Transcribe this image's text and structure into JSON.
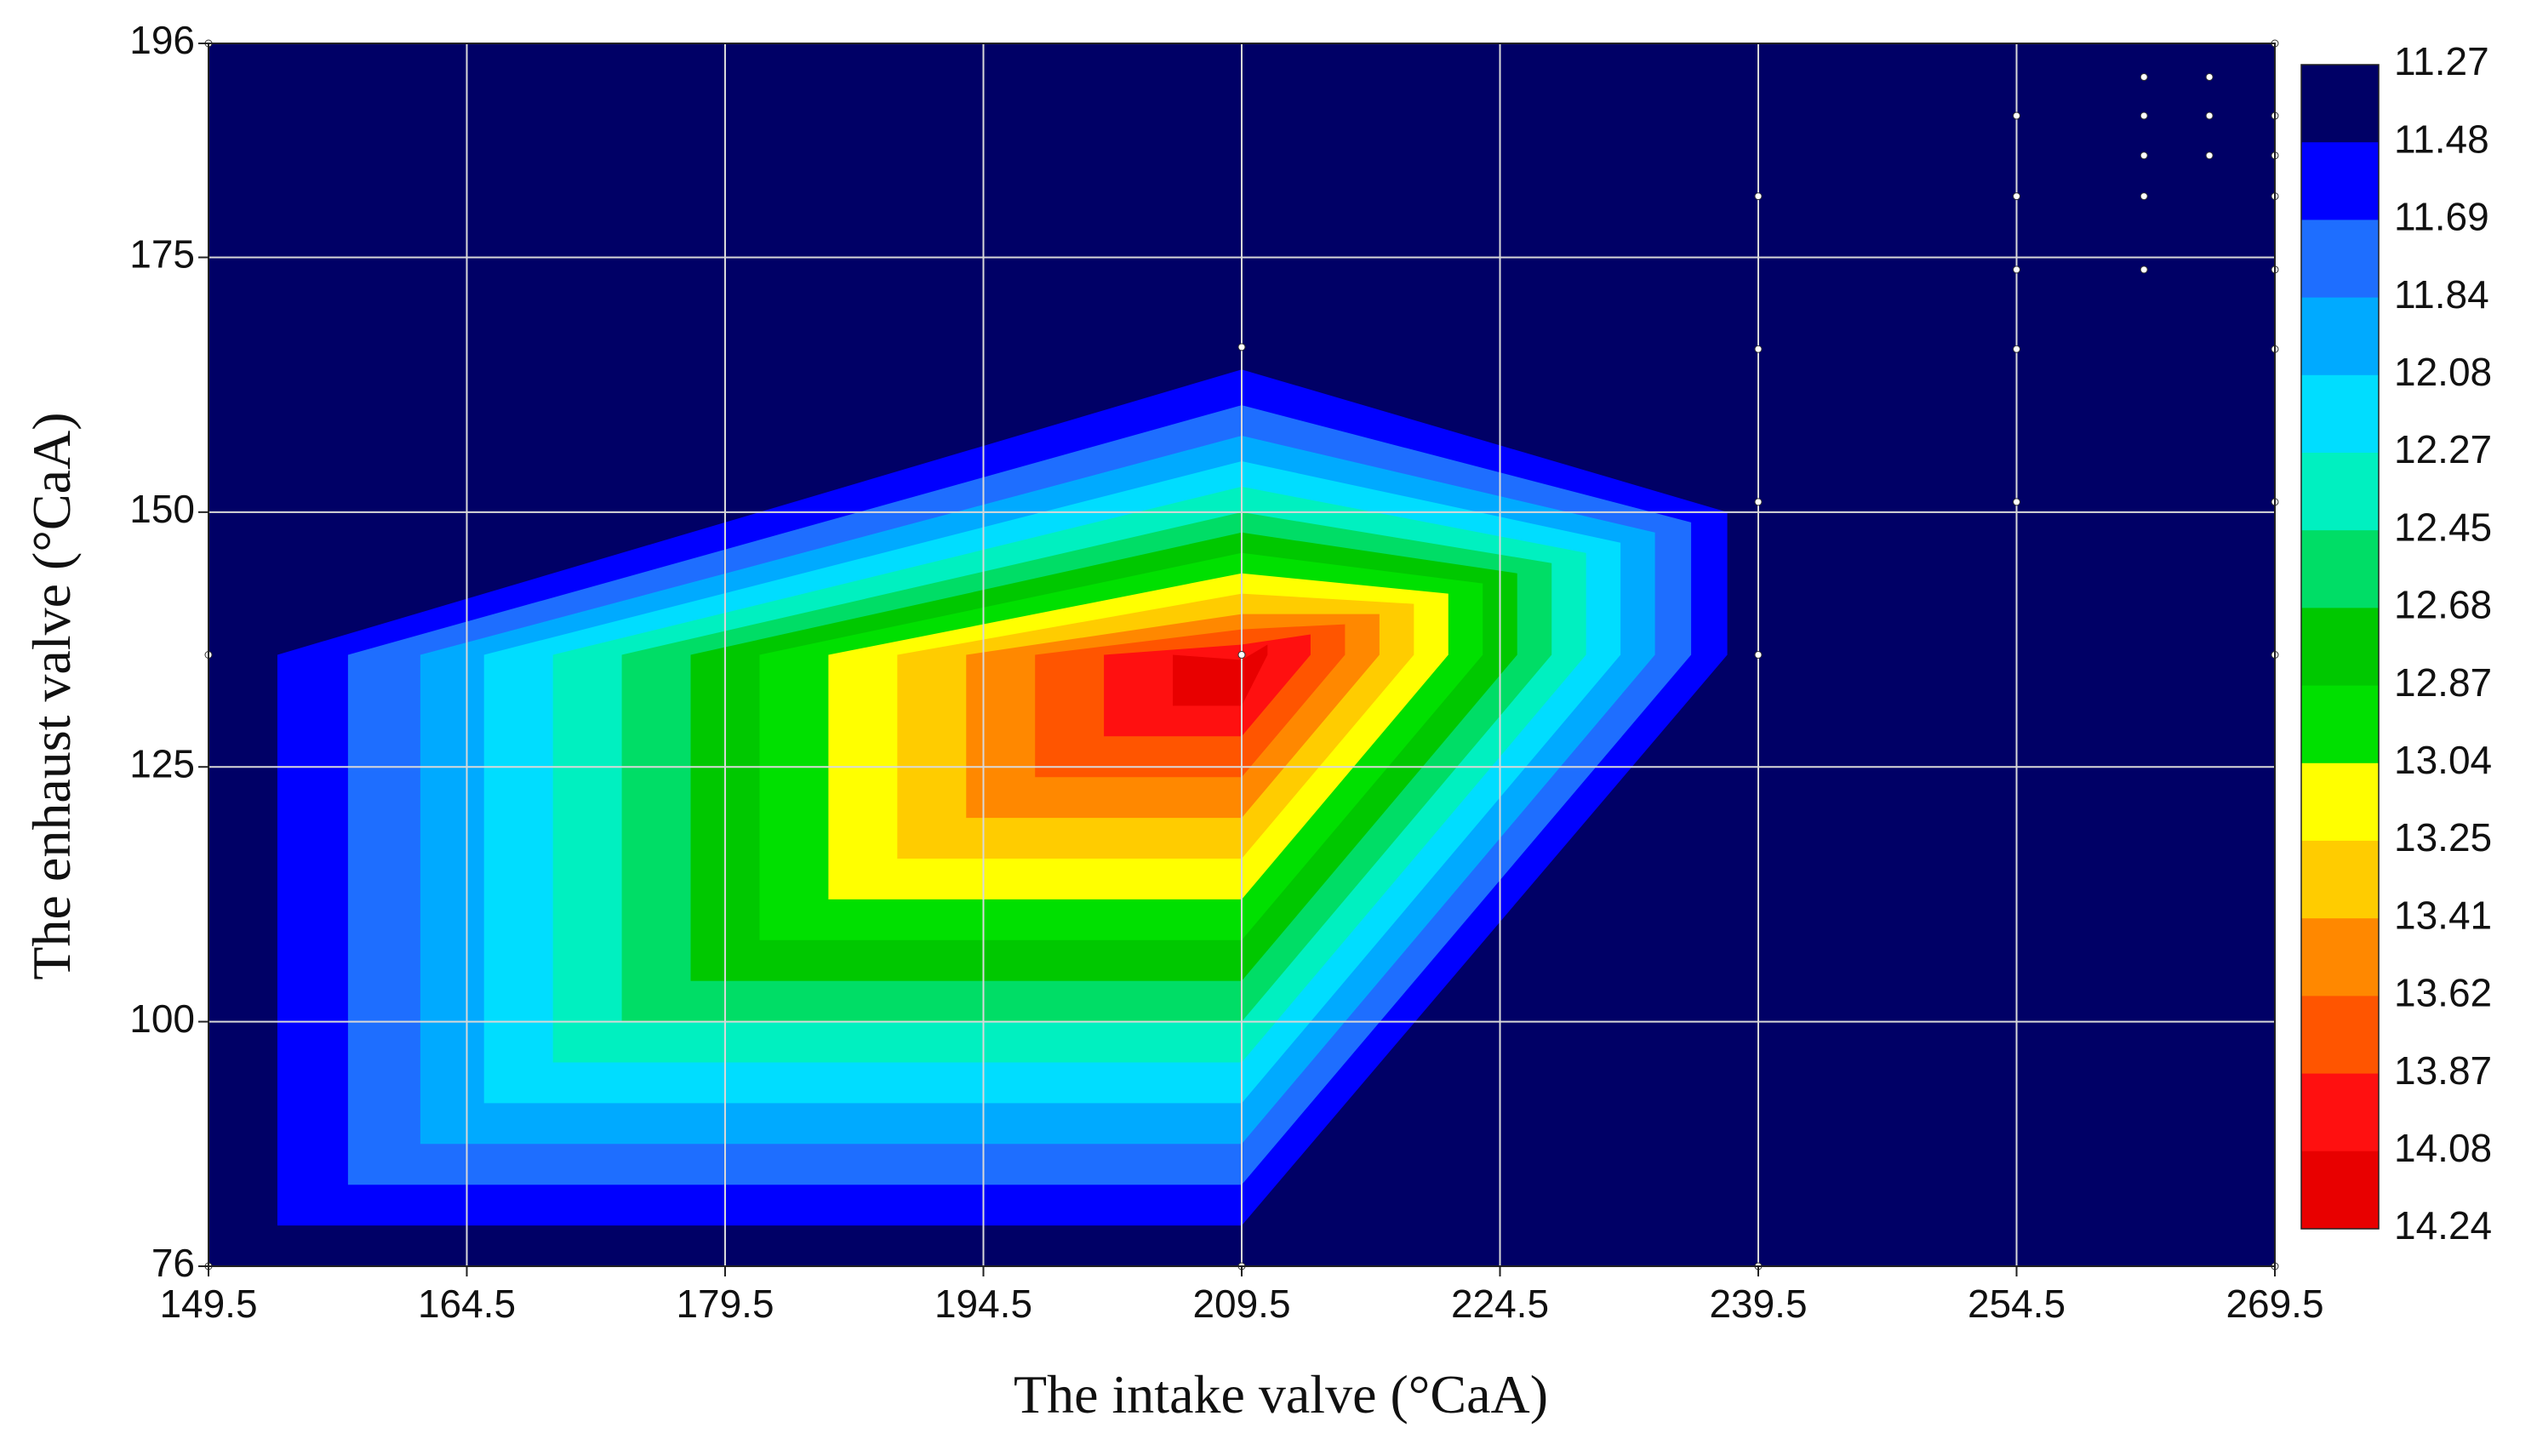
{
  "chart_data": {
    "type": "contour",
    "x_label": "The intake valve (°CaA)",
    "y_label": "The enhaust valve (°CaA)",
    "xlim": [
      149.5,
      269.5
    ],
    "xticks": [
      149.5,
      164.5,
      179.5,
      194.5,
      209.5,
      224.5,
      239.5,
      254.5,
      269.5
    ],
    "ylim": [
      76,
      196
    ],
    "yticks": [
      76,
      100,
      125,
      150,
      175,
      196
    ],
    "grid": true,
    "levels": [
      11.27,
      11.48,
      11.69,
      11.84,
      12.08,
      12.27,
      12.45,
      12.68,
      12.87,
      13.04,
      13.25,
      13.41,
      13.62,
      13.87,
      14.08,
      14.24
    ],
    "colors": [
      "#000066",
      "#0000ff",
      "#1e6eff",
      "#00aaff",
      "#00ddff",
      "#00f0c0",
      "#00dd66",
      "#00c800",
      "#00e000",
      "#ffff00",
      "#ffcc00",
      "#ff8800",
      "#ff5500",
      "#ff1010",
      "#e80000"
    ],
    "contours": [
      {
        "x": [
          153.5,
          209.5,
          237.7,
          237.7,
          209.5,
          153.5
        ],
        "y": [
          136,
          164,
          150,
          136,
          80,
          80
        ]
      },
      {
        "x": [
          157.6,
          209.5,
          235.6,
          235.6,
          209.5,
          157.6
        ],
        "y": [
          136,
          160.5,
          149,
          136,
          84,
          84
        ]
      },
      {
        "x": [
          161.8,
          209.5,
          233.5,
          233.5,
          209.5,
          161.8
        ],
        "y": [
          136,
          157.5,
          148,
          136,
          88,
          88
        ]
      },
      {
        "x": [
          165.5,
          209.5,
          231.5,
          231.5,
          209.5,
          165.5
        ],
        "y": [
          136,
          155,
          147,
          136,
          92,
          92
        ]
      },
      {
        "x": [
          169.5,
          209.5,
          229.5,
          229.5,
          209.5,
          169.5
        ],
        "y": [
          136,
          152.5,
          146,
          136,
          96,
          96
        ]
      },
      {
        "x": [
          173.5,
          209.5,
          227.5,
          227.5,
          209.5,
          173.5
        ],
        "y": [
          136,
          150,
          145,
          136,
          100,
          100
        ]
      },
      {
        "x": [
          177.5,
          209.5,
          225.5,
          225.5,
          209.5,
          177.5
        ],
        "y": [
          136,
          148,
          144,
          136,
          104,
          104
        ]
      },
      {
        "x": [
          181.5,
          209.5,
          223.5,
          223.5,
          209.5,
          181.5
        ],
        "y": [
          136,
          146,
          143,
          136,
          108,
          108
        ]
      },
      {
        "x": [
          185.5,
          209.5,
          221.5,
          221.5,
          209.5,
          185.5
        ],
        "y": [
          136,
          144,
          142,
          136,
          112,
          112
        ]
      },
      {
        "x": [
          189.5,
          209.5,
          219.5,
          219.5,
          209.5,
          189.5
        ],
        "y": [
          136,
          142,
          141,
          136,
          116,
          116
        ]
      },
      {
        "x": [
          193.5,
          209.5,
          217.5,
          217.5,
          209.5,
          193.5
        ],
        "y": [
          136,
          140,
          140,
          136,
          120,
          120
        ]
      },
      {
        "x": [
          197.5,
          209.5,
          215.5,
          215.5,
          209.5,
          197.5
        ],
        "y": [
          136,
          138.5,
          139,
          136,
          124,
          124
        ]
      },
      {
        "x": [
          201.5,
          209.5,
          213.5,
          213.5,
          209.5,
          201.5
        ],
        "y": [
          136,
          137,
          138,
          136,
          128,
          128
        ]
      },
      {
        "x": [
          205.5,
          209.5,
          211,
          211,
          209.5,
          205.5
        ],
        "y": [
          136,
          135.5,
          137,
          136,
          131,
          131
        ]
      }
    ],
    "points": {
      "x": [
        149.5,
        149.5,
        149.5,
        209.5,
        209.5,
        209.5,
        239.5,
        239.5,
        239.5,
        239.5,
        239.5,
        254.5,
        254.5,
        254.5,
        254.5,
        254.5,
        261.9,
        261.9,
        261.9,
        261.9,
        261.9,
        265.7,
        265.7,
        265.7,
        269.5,
        269.5,
        269.5,
        269.5,
        269.5,
        269.5,
        269.5,
        269.5,
        269.5
      ],
      "y": [
        196,
        136,
        76,
        166.2,
        136,
        76,
        181,
        166,
        151,
        136,
        76,
        188.9,
        181,
        173.8,
        166,
        151,
        192.7,
        188.9,
        185,
        181,
        173.8,
        192.7,
        188.9,
        185,
        196,
        188.9,
        185,
        181,
        173.8,
        166,
        151,
        136,
        76
      ]
    }
  }
}
